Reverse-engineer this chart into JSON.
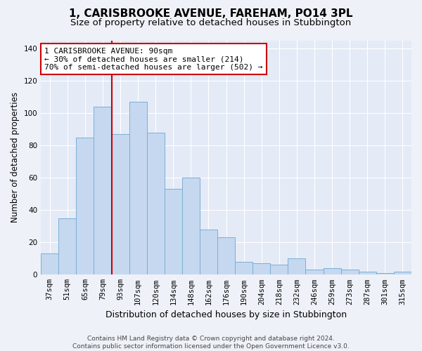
{
  "title": "1, CARISBROOKE AVENUE, FAREHAM, PO14 3PL",
  "subtitle": "Size of property relative to detached houses in Stubbington",
  "xlabel": "Distribution of detached houses by size in Stubbington",
  "ylabel": "Number of detached properties",
  "categories": [
    "37sqm",
    "51sqm",
    "65sqm",
    "79sqm",
    "93sqm",
    "107sqm",
    "120sqm",
    "134sqm",
    "148sqm",
    "162sqm",
    "176sqm",
    "190sqm",
    "204sqm",
    "218sqm",
    "232sqm",
    "246sqm",
    "259sqm",
    "273sqm",
    "287sqm",
    "301sqm",
    "315sqm"
  ],
  "values": [
    13,
    35,
    85,
    104,
    87,
    107,
    88,
    53,
    60,
    28,
    23,
    8,
    7,
    6,
    10,
    3,
    4,
    3,
    2,
    1,
    2
  ],
  "bar_color": "#c5d8f0",
  "bar_edge_color": "#7bafd4",
  "vline_color": "#cc0000",
  "vline_x": 3.5,
  "annotation_text": "1 CARISBROOKE AVENUE: 90sqm\n← 30% of detached houses are smaller (214)\n70% of semi-detached houses are larger (502) →",
  "annotation_box_facecolor": "#ffffff",
  "annotation_box_edgecolor": "#cc0000",
  "ylim": [
    0,
    145
  ],
  "yticks": [
    0,
    20,
    40,
    60,
    80,
    100,
    120,
    140
  ],
  "footer": "Contains HM Land Registry data © Crown copyright and database right 2024.\nContains public sector information licensed under the Open Government Licence v3.0.",
  "bg_color": "#eef2f8",
  "plot_bg_color": "#e4eaf6",
  "grid_color": "#ffffff",
  "title_fontsize": 11,
  "subtitle_fontsize": 9.5,
  "tick_fontsize": 7.5,
  "ylabel_fontsize": 8.5,
  "xlabel_fontsize": 9,
  "annotation_fontsize": 8,
  "footer_fontsize": 6.5
}
